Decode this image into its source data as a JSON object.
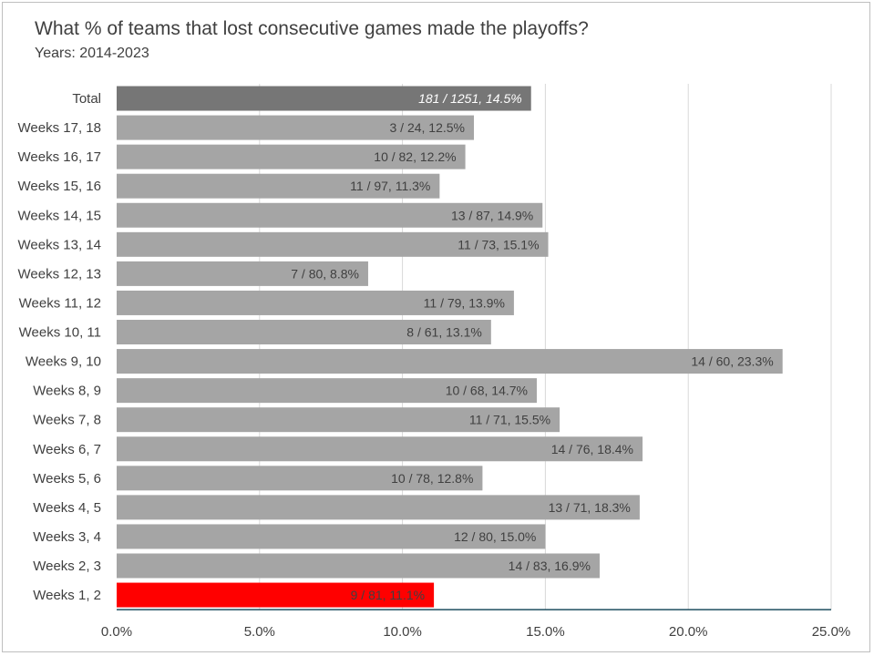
{
  "chart_data": {
    "type": "bar",
    "orientation": "horizontal",
    "title": "What % of teams that lost consecutive games made the playoffs?",
    "subtitle": "Years: 2014-2023",
    "categories": [
      "Total",
      "Weeks 17, 18",
      "Weeks 16, 17",
      "Weeks 15, 16",
      "Weeks 14, 15",
      "Weeks 13, 14",
      "Weeks 12, 13",
      "Weeks 11, 12",
      "Weeks 10, 11",
      "Weeks 9, 10",
      "Weeks 8, 9",
      "Weeks 7, 8",
      "Weeks 6, 7",
      "Weeks 5, 6",
      "Weeks 4, 5",
      "Weeks 3, 4",
      "Weeks 2, 3",
      "Weeks 1, 2"
    ],
    "values": [
      14.5,
      12.5,
      12.2,
      11.3,
      14.9,
      15.1,
      8.8,
      13.9,
      13.1,
      23.3,
      14.7,
      15.5,
      18.4,
      12.8,
      18.3,
      15.0,
      16.9,
      11.1
    ],
    "data_labels": [
      "181 / 1251, 14.5%",
      "3 / 24, 12.5%",
      "10 / 82, 12.2%",
      "11 / 97, 11.3%",
      "13 / 87, 14.9%",
      "11 / 73, 15.1%",
      "7 / 80, 8.8%",
      "11 / 79, 13.9%",
      "8 / 61, 13.1%",
      "14 / 60, 23.3%",
      "10 / 68, 14.7%",
      "11 / 71, 15.5%",
      "14 / 76, 18.4%",
      "10 / 78, 12.8%",
      "13 / 71, 18.3%",
      "12 / 80, 15.0%",
      "14 / 83, 16.9%",
      "9 / 81, 11.1%"
    ],
    "xlim": [
      0,
      25
    ],
    "xticks": [
      "0.0%",
      "5.0%",
      "10.0%",
      "15.0%",
      "20.0%",
      "25.0%"
    ],
    "grid": true,
    "colors": {
      "default": "#a5a5a5",
      "total": "#767676",
      "highlight": "#ff0000",
      "gridline": "#d9d9d9",
      "axis": "#1f4e5f"
    }
  }
}
